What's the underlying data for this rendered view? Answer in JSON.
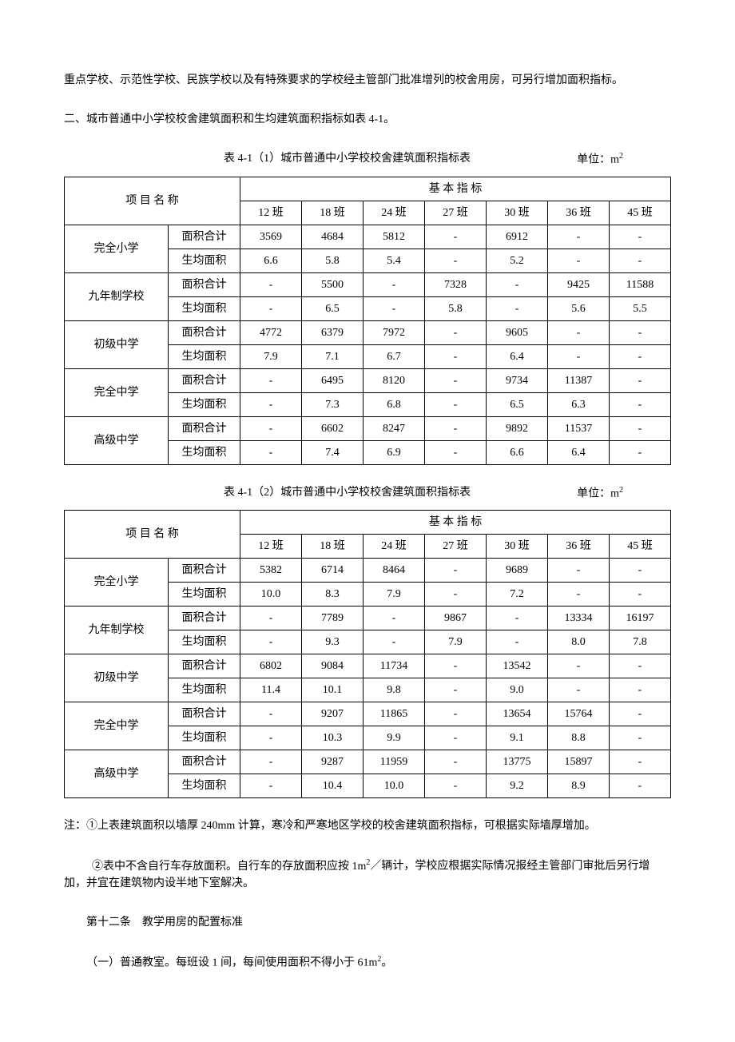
{
  "intro": {
    "p1": "重点学校、示范性学校、民族学校以及有特殊要求的学校经主管部门批准增列的校舍用房，可另行增加面积指标。",
    "p2": "二、城市普通中小学校校舍建筑面积和生均建筑面积指标如表 4-1。"
  },
  "tables": {
    "unit_label": "单位：m",
    "header_group": "基   本   指   标",
    "name_header": "项  目  名  称",
    "class_cols": [
      "12 班",
      "18 班",
      "24 班",
      "27 班",
      "30 班",
      "36 班",
      "45 班"
    ],
    "metric_area": "面积合计",
    "metric_avg": "生均面积",
    "t1": {
      "caption": "表 4-1（1）城市普通中小学校校舍建筑面积指标表",
      "rows": [
        {
          "name": "完全小学",
          "area": [
            "3569",
            "4684",
            "5812",
            "-",
            "6912",
            "-",
            "-"
          ],
          "avg": [
            "6.6",
            "5.8",
            "5.4",
            "-",
            "5.2",
            "-",
            "-"
          ]
        },
        {
          "name": "九年制学校",
          "area": [
            "-",
            "5500",
            "-",
            "7328",
            "-",
            "9425",
            "11588"
          ],
          "avg": [
            "-",
            "6.5",
            "-",
            "5.8",
            "-",
            "5.6",
            "5.5"
          ]
        },
        {
          "name": "初级中学",
          "area": [
            "4772",
            "6379",
            "7972",
            "-",
            "9605",
            "-",
            "-"
          ],
          "avg": [
            "7.9",
            "7.1",
            "6.7",
            "-",
            "6.4",
            "-",
            "-"
          ]
        },
        {
          "name": "完全中学",
          "area": [
            "-",
            "6495",
            "8120",
            "-",
            "9734",
            "11387",
            "-"
          ],
          "avg": [
            "-",
            "7.3",
            "6.8",
            "-",
            "6.5",
            "6.3",
            "-"
          ]
        },
        {
          "name": "高级中学",
          "area": [
            "-",
            "6602",
            "8247",
            "-",
            "9892",
            "11537",
            "-"
          ],
          "avg": [
            "-",
            "7.4",
            "6.9",
            "-",
            "6.6",
            "6.4",
            "-"
          ]
        }
      ]
    },
    "t2": {
      "caption": "表 4-1（2）城市普通中小学校校舍建筑面积指标表",
      "rows": [
        {
          "name": "完全小学",
          "area": [
            "5382",
            "6714",
            "8464",
            "-",
            "9689",
            "-",
            "-"
          ],
          "avg": [
            "10.0",
            "8.3",
            "7.9",
            "-",
            "7.2",
            "-",
            "-"
          ]
        },
        {
          "name": "九年制学校",
          "area": [
            "-",
            "7789",
            "-",
            "9867",
            "-",
            "13334",
            "16197"
          ],
          "avg": [
            "-",
            "9.3",
            "-",
            "7.9",
            "-",
            "8.0",
            "7.8"
          ]
        },
        {
          "name": "初级中学",
          "area": [
            "6802",
            "9084",
            "11734",
            "-",
            "13542",
            "-",
            "-"
          ],
          "avg": [
            "11.4",
            "10.1",
            "9.8",
            "-",
            "9.0",
            "-",
            "-"
          ]
        },
        {
          "name": "完全中学",
          "area": [
            "-",
            "9207",
            "11865",
            "-",
            "13654",
            "15764",
            "-"
          ],
          "avg": [
            "-",
            "10.3",
            "9.9",
            "-",
            "9.1",
            "8.8",
            "-"
          ]
        },
        {
          "name": "高级中学",
          "area": [
            "-",
            "9287",
            "11959",
            "-",
            "13775",
            "15897",
            "-"
          ],
          "avg": [
            "-",
            "10.4",
            "10.0",
            "-",
            "9.2",
            "8.9",
            "-"
          ]
        }
      ]
    }
  },
  "notes": {
    "n1": "注：①上表建筑面积以墙厚 240mm 计算，寒冷和严寒地区学校的校舍建筑面积指标，可根据实际墙厚增加。",
    "n2_a": "②表中不含自行车存放面积。自行车的存放面积应按 1m",
    "n2_b": "／辆计，学校应根据实际情况报经主管部门审批后另行增加，并宜在建筑物内设半地下室解决。",
    "art12": "第十二条　教学用房的配置标准",
    "clause1_a": "（一）普通教室。每班设 1 间，每间使用面积不得小于 61m",
    "clause1_b": "。"
  }
}
